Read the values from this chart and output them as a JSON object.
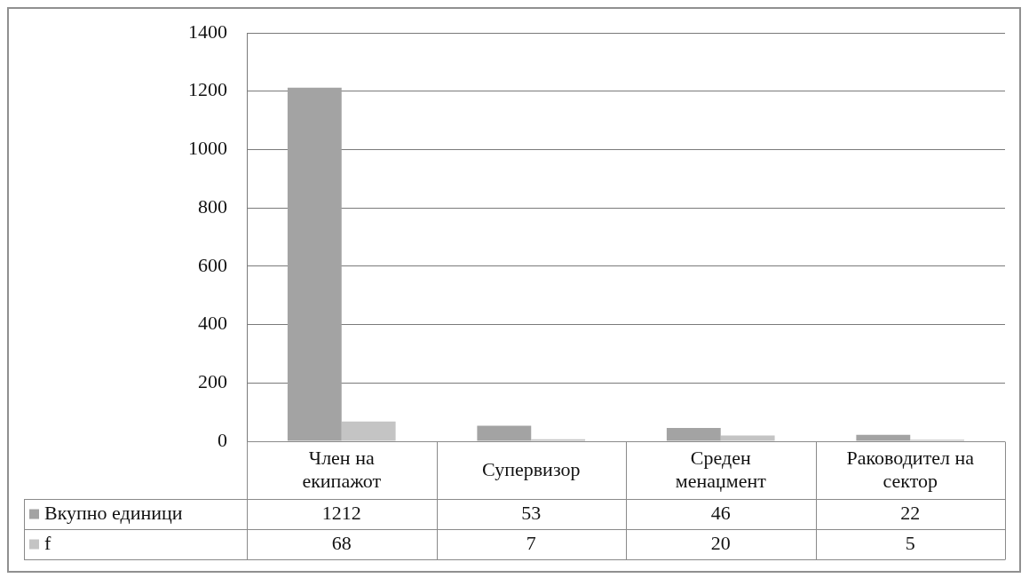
{
  "chart_data": {
    "type": "bar",
    "categories": [
      "Член на екипажот",
      "Супервизор",
      "Среден менаџмент",
      "Раководител на сектор"
    ],
    "series": [
      {
        "name": "Вкупно единици",
        "color": "#a3a3a3",
        "values": [
          1212,
          53,
          46,
          22
        ]
      },
      {
        "name": "f",
        "color": "#c4c4c4",
        "values": [
          68,
          7,
          20,
          5
        ]
      }
    ],
    "ylim": [
      0,
      1400
    ],
    "yticks": [
      0,
      200,
      400,
      600,
      800,
      1000,
      1200,
      1400
    ],
    "grid": "y",
    "legend": "bottom left",
    "data_labels": true
  }
}
